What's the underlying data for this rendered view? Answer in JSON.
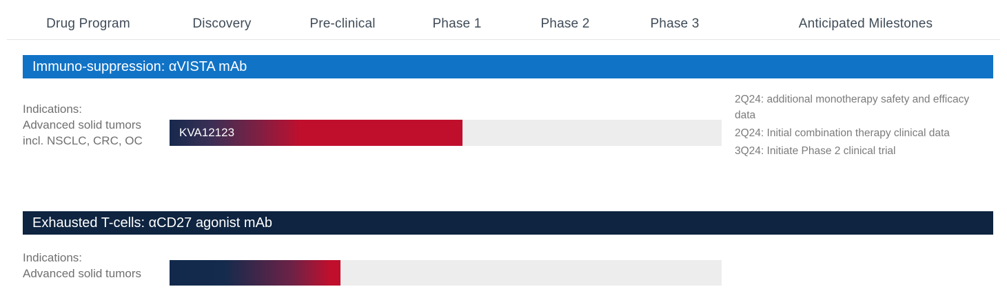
{
  "header": {
    "columns": [
      "Drug Program",
      "Discovery",
      "Pre-clinical",
      "Phase 1",
      "Phase 2",
      "Phase 3",
      "Anticipated Milestones"
    ]
  },
  "programs": [
    {
      "banner": "Immuno-suppression: αVISTA mAb",
      "banner_color": "#1173c6",
      "indications": [
        "Indications:",
        "Advanced solid tumors",
        "incl. NSCLC, CRC, OC"
      ],
      "bar_label": "KVA12123",
      "milestones": [
        "2Q24:  additional monotherapy safety and efficacy data",
        "2Q24:  Initial combination therapy clinical data",
        "3Q24: Initiate Phase 2 clinical trial"
      ]
    },
    {
      "banner": "Exhausted T-cells: αCD27 agonist mAb",
      "banner_color": "#0e2440",
      "indications": [
        "Indications:",
        "Advanced solid tumors"
      ],
      "bar_label": "",
      "milestones": []
    }
  ],
  "chart_data": {
    "type": "bar",
    "title": "Drug development pipeline by clinical phase",
    "phases": [
      "Discovery",
      "Pre-clinical",
      "Phase 1",
      "Phase 2",
      "Phase 3"
    ],
    "series": [
      {
        "name": "KVA12123",
        "program": "Immuno-suppression: αVISTA mAb",
        "indication": "Advanced solid tumors incl. NSCLC, CRC, OC",
        "progress_phase": "Phase 1",
        "progress_fraction_of_pipeline": 0.53
      },
      {
        "name": "αCD27 agonist mAb",
        "program": "Exhausted T-cells: αCD27 agonist mAb",
        "indication": "Advanced solid tumors",
        "progress_phase": "Pre-clinical",
        "progress_fraction_of_pipeline": 0.31
      }
    ],
    "colors": {
      "bar_gradient_start": "#16294d",
      "bar_gradient_end": "#c00f2d",
      "bar_track": "#ededed"
    },
    "legend_position": "none",
    "grid": false
  }
}
